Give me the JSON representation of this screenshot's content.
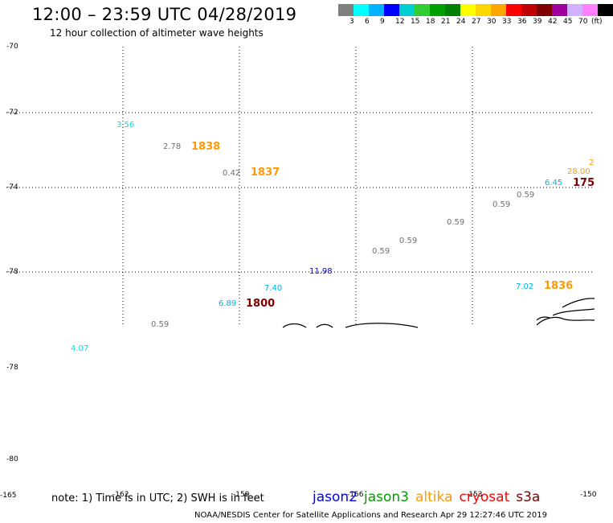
{
  "header": {
    "title": "12:00 – 23:59 UTC 04/28/2019",
    "subtitle": "12 hour collection of altimeter wave heights"
  },
  "colorbar": {
    "colors": [
      "#808080",
      "#00ffff",
      "#00b2ff",
      "#0000ff",
      "#00ced1",
      "#32cd32",
      "#00a000",
      "#008000",
      "#ffff00",
      "#ffd700",
      "#ffa500",
      "#ff0000",
      "#c00000",
      "#800000",
      "#a000a0",
      "#d0b0ff",
      "#ff80ff",
      "#000000"
    ],
    "labels": [
      "3",
      "6",
      "9",
      "12",
      "15",
      "18",
      "21",
      "24",
      "27",
      "30",
      "33",
      "36",
      "39",
      "42",
      "45",
      "70",
      "(ft)"
    ]
  },
  "axes": {
    "lat_labels": [
      "-70",
      "-72",
      "-74",
      "-78",
      "-78",
      "-80"
    ],
    "lon_labels": [
      "-165",
      "-162",
      "-159",
      "-156",
      "-153",
      "-150"
    ]
  },
  "observations": [
    {
      "text": "3.56",
      "color": "#00e5e5"
    },
    {
      "text": "2.78",
      "color": "#707070"
    },
    {
      "text": "1838",
      "color": "#ff9900",
      "bold": true
    },
    {
      "text": "0.42",
      "color": "#707070"
    },
    {
      "text": "1837",
      "color": "#ff9900",
      "bold": true
    },
    {
      "text": "28.00",
      "color": "#ff9900"
    },
    {
      "text": "2",
      "color": "#ff9900"
    },
    {
      "text": "6.45",
      "color": "#00b2e5"
    },
    {
      "text": "175",
      "color": "#800000",
      "bold": true
    },
    {
      "text": "0.59",
      "color": "#707070"
    },
    {
      "text": "0.59",
      "color": "#707070"
    },
    {
      "text": "0.59",
      "color": "#707070"
    },
    {
      "text": "0.59",
      "color": "#707070"
    },
    {
      "text": "0.59",
      "color": "#707070"
    },
    {
      "text": "11.98",
      "color": "#0000cc"
    },
    {
      "text": "7.40",
      "color": "#00b2e5"
    },
    {
      "text": "7.02",
      "color": "#00b2e5"
    },
    {
      "text": "1836",
      "color": "#ff9900",
      "bold": true
    },
    {
      "text": "6.89",
      "color": "#00b2e5"
    },
    {
      "text": "1800",
      "color": "#800000",
      "bold": true
    },
    {
      "text": "0.59",
      "color": "#707070"
    },
    {
      "text": "4.07",
      "color": "#00e5e5"
    }
  ],
  "footer": {
    "note": "note: 1) Time is in UTC; 2) SWH is in feet",
    "legend": [
      {
        "name": "jason2",
        "color": "#0000ff"
      },
      {
        "name": "jason3",
        "color": "#00a000"
      },
      {
        "name": "altika",
        "color": "#ff9900"
      },
      {
        "name": "cryosat",
        "color": "#ff0000"
      },
      {
        "name": "s3a",
        "color": "#800000"
      }
    ],
    "credit": "NOAA/NESDIS Center for Satellite Applications and Research    Apr 29 12:27:46 UTC 2019"
  }
}
